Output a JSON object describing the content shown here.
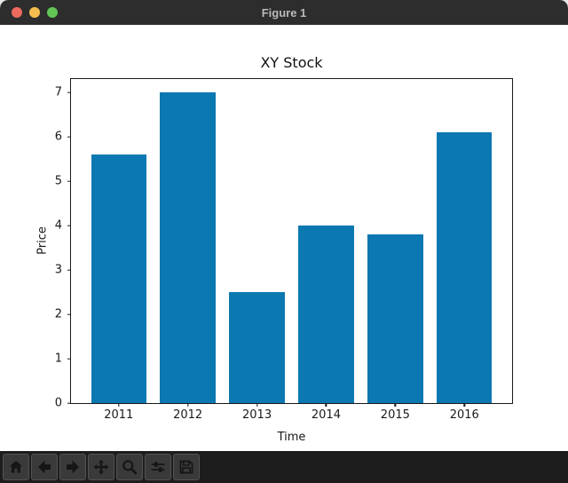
{
  "window": {
    "title": "Figure 1"
  },
  "titlebar": {
    "traffic_lights": {
      "close_color": "#ec6a5e",
      "minimize_color": "#f5bf4f",
      "fullscreen_color": "#62c554"
    }
  },
  "chart_data": {
    "type": "bar",
    "title": "XY Stock",
    "xlabel": "Time",
    "ylabel": "Price",
    "categories": [
      "2011",
      "2012",
      "2013",
      "2014",
      "2015",
      "2016"
    ],
    "values": [
      5.6,
      7.0,
      2.5,
      4.0,
      3.8,
      6.1
    ],
    "yticks": [
      0,
      1,
      2,
      3,
      4,
      5,
      6,
      7
    ],
    "ylim": [
      0,
      7.3
    ],
    "bar_color": "#0c78b2",
    "grid": false,
    "legend": null
  },
  "toolbar": {
    "buttons": [
      {
        "id": "home",
        "icon": "home-icon"
      },
      {
        "id": "back",
        "icon": "back-arrow-icon"
      },
      {
        "id": "forward",
        "icon": "forward-arrow-icon"
      },
      {
        "id": "pan",
        "icon": "pan-move-icon"
      },
      {
        "id": "zoom",
        "icon": "magnifier-icon"
      },
      {
        "id": "configure-subplots",
        "icon": "sliders-icon"
      },
      {
        "id": "save",
        "icon": "floppy-disk-icon"
      }
    ]
  }
}
